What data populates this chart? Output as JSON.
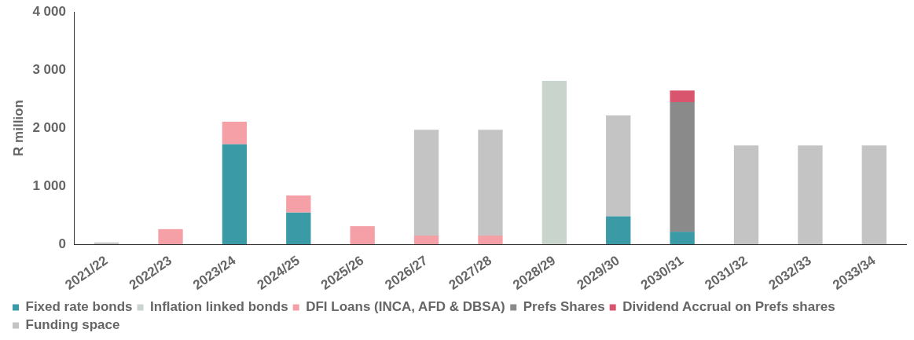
{
  "chart_data": {
    "type": "bar",
    "stacked": true,
    "ylabel": "R million",
    "categories": [
      "2021/22",
      "2022/23",
      "2023/24",
      "2024/25",
      "2025/26",
      "2026/27",
      "2027/28",
      "2028/29",
      "2029/30",
      "2030/31",
      "2031/32",
      "2032/33",
      "2033/34"
    ],
    "series": [
      {
        "name": "Fixed rate bonds",
        "color": "#3a9aa6",
        "values": [
          0,
          0,
          1720,
          545,
          0,
          0,
          0,
          0,
          480,
          215,
          0,
          0,
          0
        ]
      },
      {
        "name": "Inflation linked bonds",
        "color": "#c9d5cc",
        "values": [
          0,
          0,
          0,
          0,
          0,
          0,
          0,
          2810,
          0,
          0,
          0,
          0,
          0
        ]
      },
      {
        "name": "DFI Loans (INCA, AFD & DBSA)",
        "color": "#f4a0a6",
        "values": [
          0,
          260,
          390,
          295,
          310,
          150,
          150,
          0,
          0,
          0,
          0,
          0,
          0
        ]
      },
      {
        "name": "Prefs Shares",
        "color": "#8a8a8a",
        "values": [
          0,
          0,
          0,
          0,
          0,
          0,
          0,
          0,
          0,
          2230,
          0,
          0,
          0
        ]
      },
      {
        "name": "Dividend Accrual on Prefs shares",
        "color": "#d9556e",
        "values": [
          0,
          0,
          0,
          0,
          0,
          0,
          0,
          0,
          0,
          200,
          0,
          0,
          0
        ]
      },
      {
        "name": "Funding space",
        "color": "#c4c4c4",
        "values": [
          30,
          0,
          0,
          0,
          0,
          1820,
          1820,
          0,
          1735,
          0,
          1700,
          1700,
          1700
        ]
      }
    ],
    "ylim": [
      0,
      4000
    ],
    "yticks": [
      {
        "value": 0,
        "label": "0"
      },
      {
        "value": 1000,
        "label": "1 000"
      },
      {
        "value": 2000,
        "label": "2 000"
      },
      {
        "value": 3000,
        "label": "3 000"
      },
      {
        "value": 4000,
        "label": "4 000"
      }
    ],
    "grid": false,
    "legend": "bottom"
  }
}
